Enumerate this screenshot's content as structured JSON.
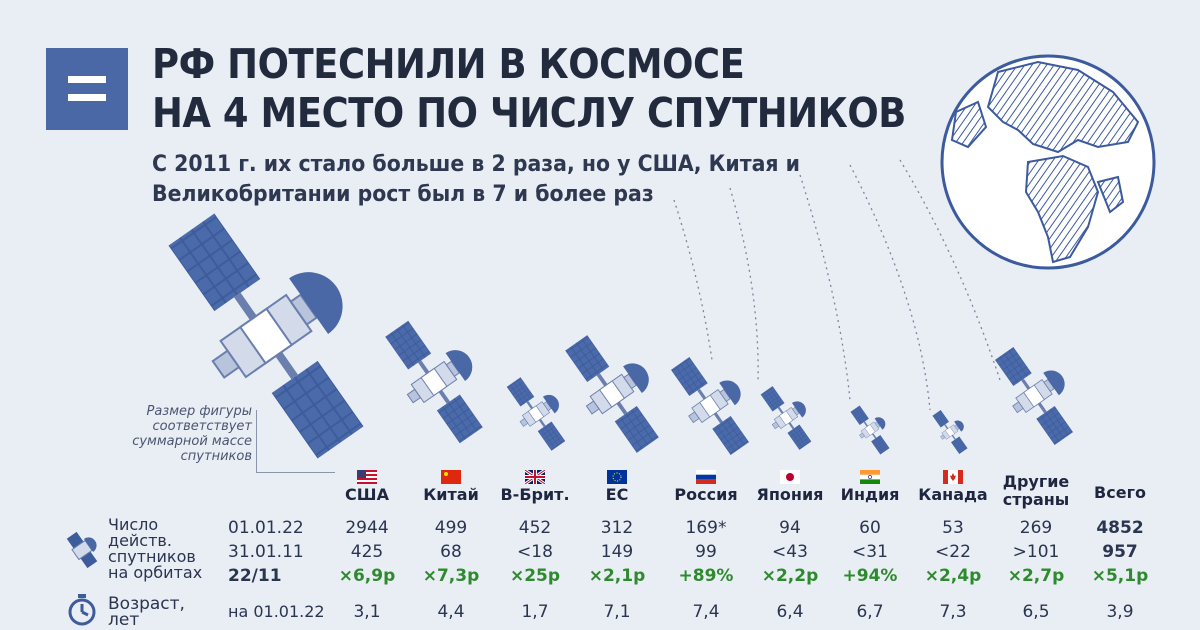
{
  "header": {
    "title_line1": "РФ ПОТЕСНИЛИ В КОСМОСЕ",
    "title_line2": "НА 4 МЕСТО ПО ЧИСЛУ СПУТНИКОВ",
    "subtitle_line1": "С 2011 г. их стало больше в 2 раза, но у США, Китая и",
    "subtitle_line2": "Великобритании рост был в 7 и более раз"
  },
  "note": {
    "line1": "Размер фигуры",
    "line2": "соответствует",
    "line3": "суммарной массе",
    "line4": "спутников"
  },
  "row_labels": {
    "satellites": [
      "Число",
      "действ.",
      "спутников",
      "на орбитах"
    ],
    "age": [
      "Возраст,",
      "лет"
    ]
  },
  "dates": {
    "d2022": "01.01.22",
    "d2011": "31.01.11",
    "period": "22/11",
    "age_date": "на 01.01.22"
  },
  "countries": [
    {
      "name": "США",
      "n2022": "2944",
      "n2011": "425",
      "growth": "×6,9р",
      "age": "3,1",
      "flag": "us"
    },
    {
      "name": "Китай",
      "n2022": "499",
      "n2011": "68",
      "growth": "×7,3р",
      "age": "4,4",
      "flag": "cn"
    },
    {
      "name": "В-Брит.",
      "n2022": "452",
      "n2011": "<18",
      "growth": "×25р",
      "age": "1,7",
      "flag": "gb"
    },
    {
      "name": "ЕС",
      "n2022": "312",
      "n2011": "149",
      "growth": "×2,1р",
      "age": "7,1",
      "flag": "eu"
    },
    {
      "name": "Россия",
      "n2022": "169*",
      "n2011": "99",
      "growth": "+89%",
      "age": "7,4",
      "flag": "ru"
    },
    {
      "name": "Япония",
      "n2022": "94",
      "n2011": "<43",
      "growth": "×2,2р",
      "age": "6,4",
      "flag": "jp"
    },
    {
      "name": "Индия",
      "n2022": "60",
      "n2011": "<31",
      "growth": "+94%",
      "age": "6,7",
      "flag": "in"
    },
    {
      "name": "Канада",
      "n2022": "53",
      "n2011": "<22",
      "growth": "×2,4р",
      "age": "7,3",
      "flag": "ca"
    },
    {
      "name": "Другие",
      "name2": "страны",
      "n2022": "269",
      "n2011": ">101",
      "growth": "×2,7р",
      "age": "6,5",
      "flag": ""
    },
    {
      "name": "Всего",
      "n2022": "4852",
      "n2011": "957",
      "growth": "×5,1р",
      "age": "3,9",
      "flag": ""
    }
  ],
  "colors": {
    "accent": "#4a67a6",
    "growth": "#2e8a2e",
    "background": "#e9edf4"
  }
}
